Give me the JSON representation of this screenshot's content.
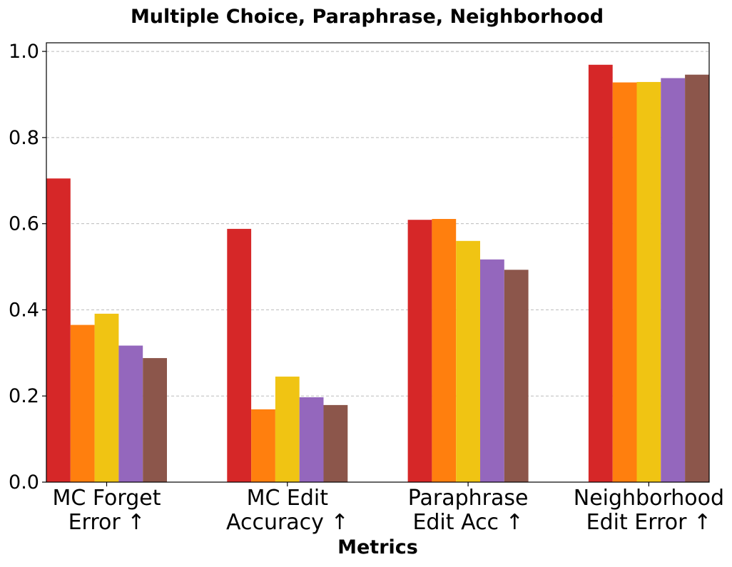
{
  "chart_data": {
    "type": "bar",
    "title": "Multiple Choice, Paraphrase, Neighborhood",
    "xlabel": "Metrics",
    "ylabel": "",
    "ylim": [
      0,
      1.02
    ],
    "yticks": [
      "0.0",
      "0.2",
      "0.4",
      "0.6",
      "0.8",
      "1.0"
    ],
    "grid": "horizontal-dashed",
    "categories": [
      [
        "MC Forget",
        "Error ↑"
      ],
      [
        "MC Edit",
        "Accuracy ↑"
      ],
      [
        "Paraphrase",
        "Edit Acc ↑"
      ],
      [
        "Neighborhood",
        "Edit Error ↑"
      ]
    ],
    "series": [
      {
        "color": "#d62728",
        "values": [
          0.705,
          0.588,
          0.609,
          0.969
        ]
      },
      {
        "color": "#ff7f0e",
        "values": [
          0.365,
          0.169,
          0.611,
          0.928
        ]
      },
      {
        "color": "#f0c413",
        "values": [
          0.391,
          0.245,
          0.56,
          0.929
        ]
      },
      {
        "color": "#9467bd",
        "values": [
          0.317,
          0.197,
          0.517,
          0.938
        ]
      },
      {
        "color": "#8c564b",
        "values": [
          0.288,
          0.179,
          0.493,
          0.946
        ]
      }
    ]
  }
}
